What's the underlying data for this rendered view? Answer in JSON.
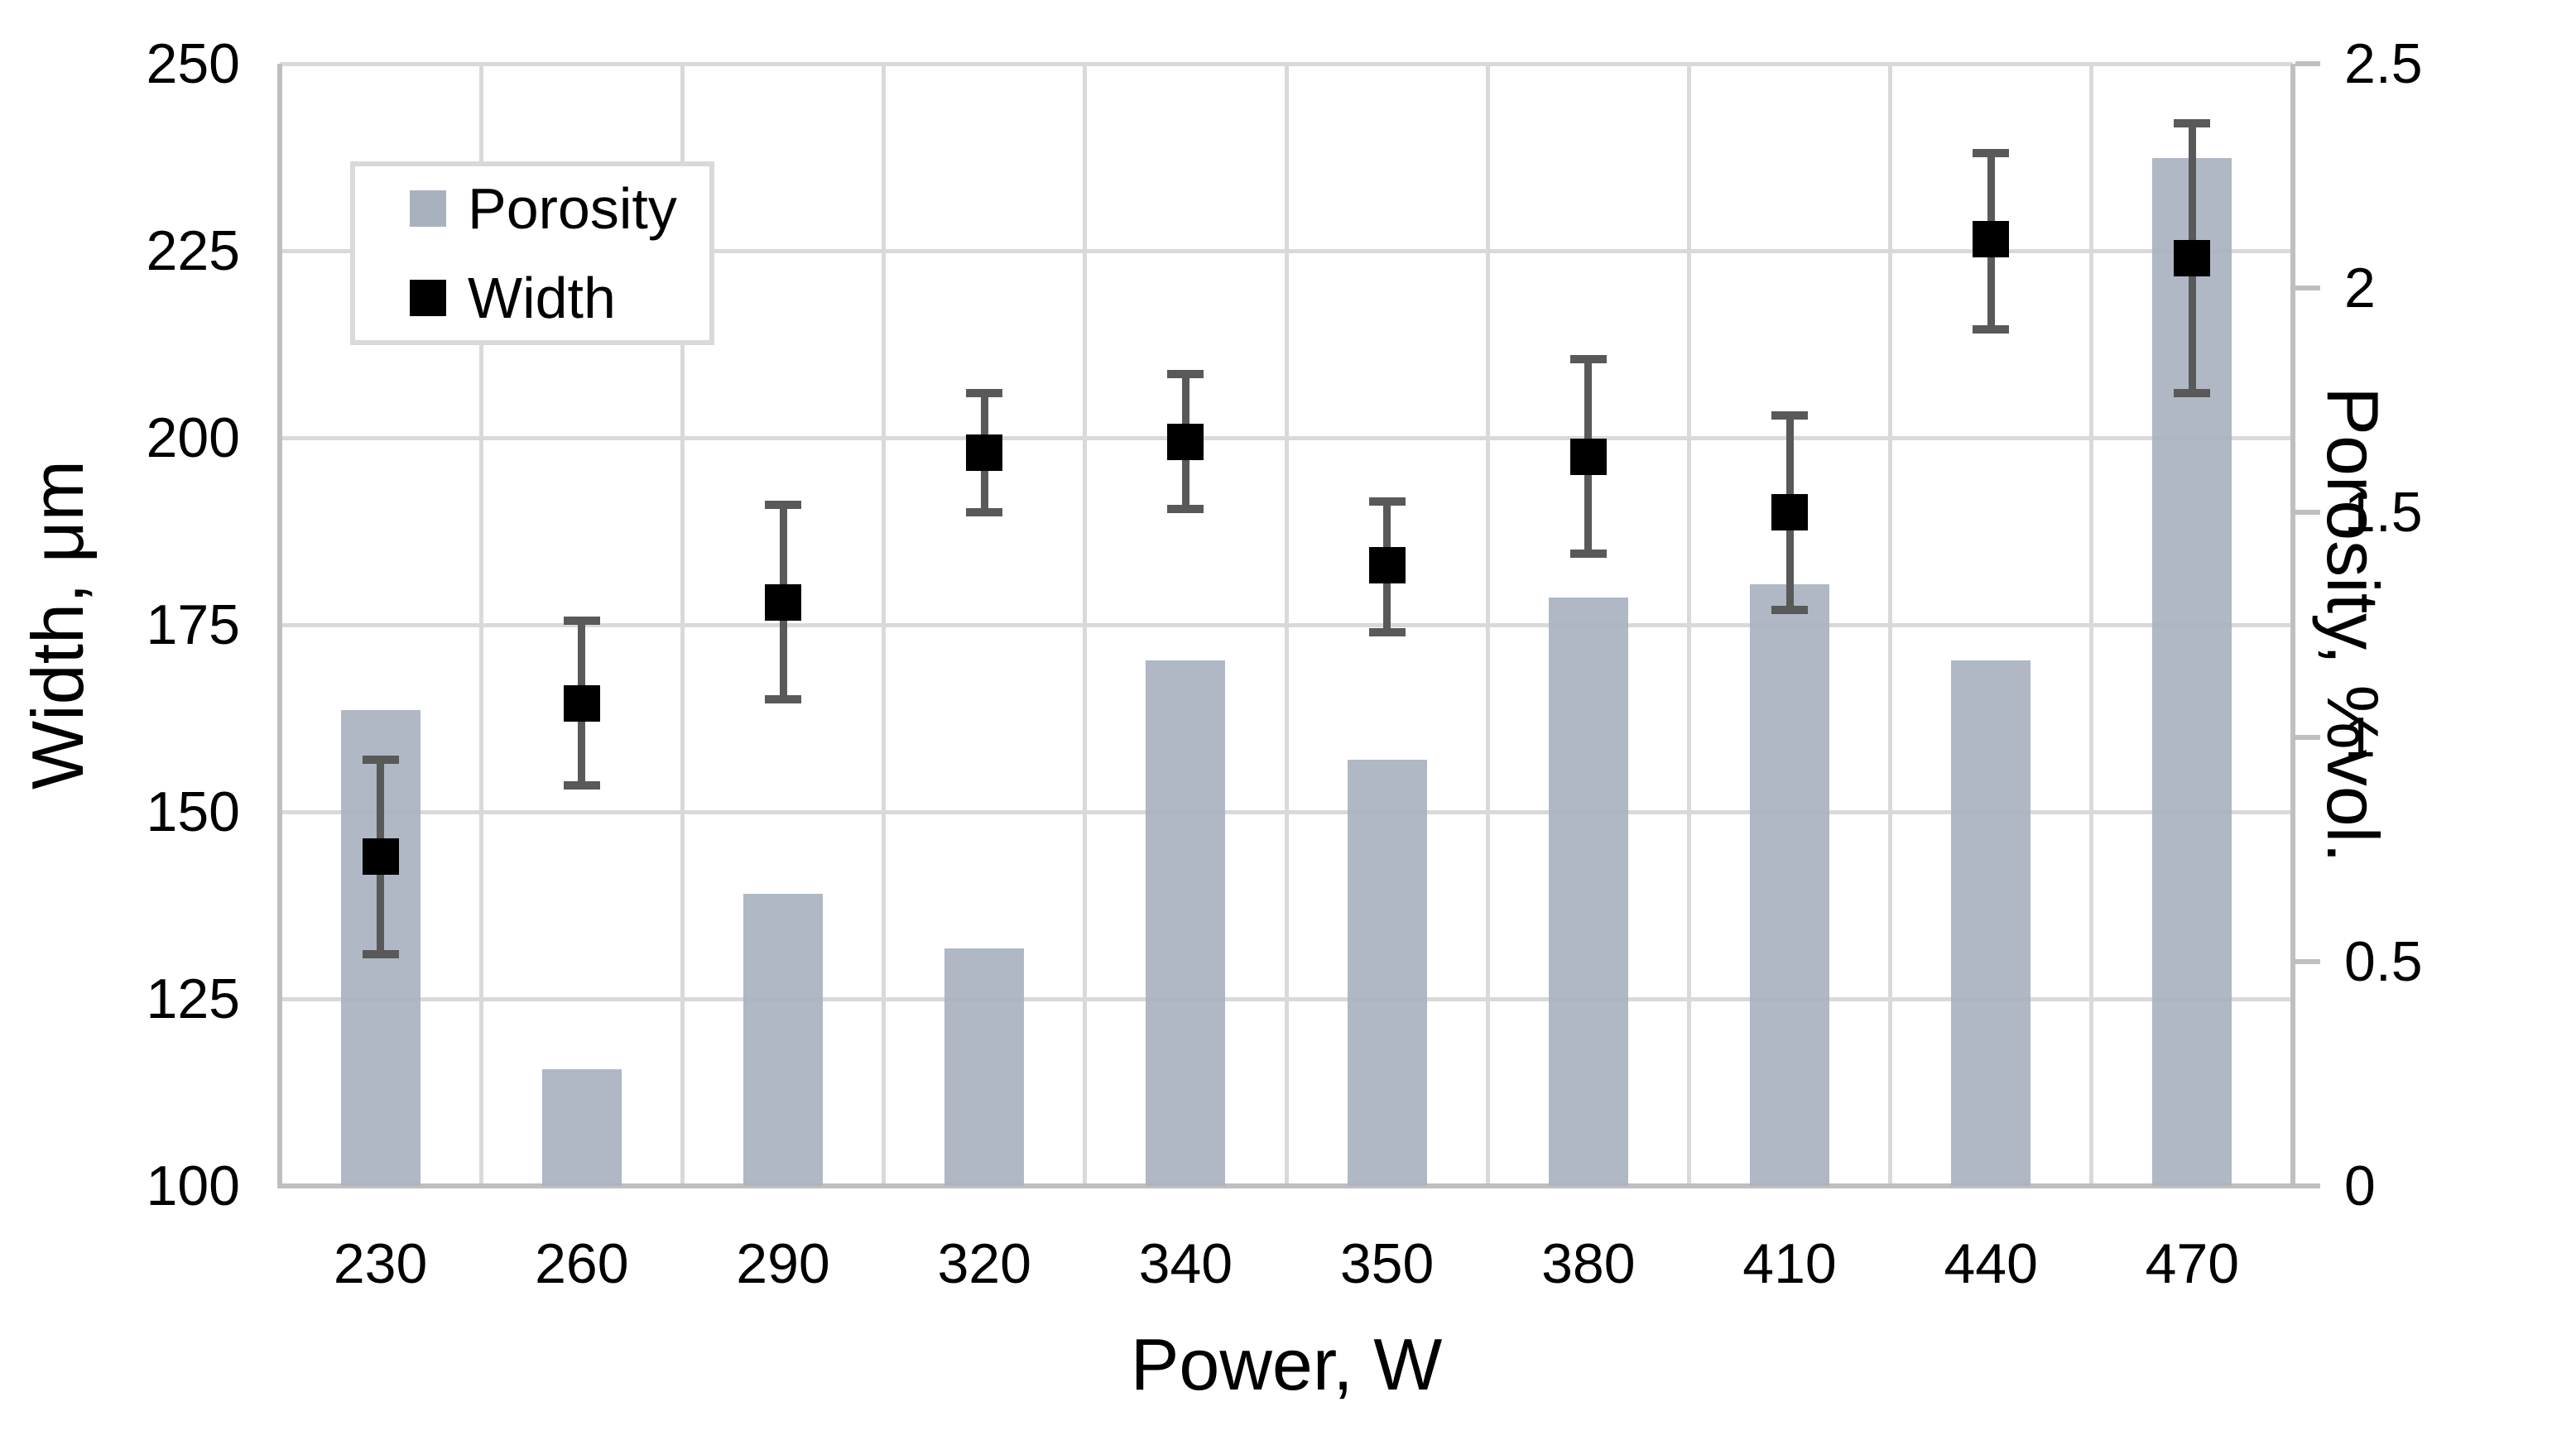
{
  "chart_data": {
    "type": "bar",
    "subtype": "combo-bar-scatter-errorbars",
    "categories": [
      "230",
      "260",
      "290",
      "320",
      "340",
      "350",
      "380",
      "410",
      "440",
      "470"
    ],
    "xlabel": "Power, W",
    "left_axis": {
      "label": "Width, μm",
      "min": 100,
      "max": 250,
      "tick_step": 25,
      "tick_labels": [
        "250",
        "225",
        "200",
        "175",
        "150",
        "125",
        "100"
      ]
    },
    "right_axis": {
      "label": "Porosity, %vol.",
      "min": 0,
      "max": 2.5,
      "tick_step": 0.5,
      "tick_labels": [
        "2.5",
        "2",
        "1.5",
        "1",
        "0.5",
        "0"
      ]
    },
    "series": [
      {
        "name": "Porosity",
        "type": "bar",
        "axis": "right",
        "color": "#a8b2bf",
        "values": [
          1.06,
          0.26,
          0.65,
          0.53,
          1.17,
          0.95,
          1.31,
          1.34,
          1.17,
          2.29
        ]
      },
      {
        "name": "Width",
        "type": "scatter",
        "axis": "left",
        "marker": "square",
        "color": "#000000",
        "error_color": "#595959",
        "values": [
          144,
          164.5,
          178,
          198,
          199.5,
          183,
          197.5,
          190,
          226.5,
          224
        ],
        "error_low": [
          131,
          153.5,
          165,
          190,
          190.5,
          174,
          184.5,
          177,
          214.5,
          206
        ],
        "error_high": [
          157,
          175.5,
          191,
          206,
          208.5,
          191.5,
          210.5,
          203,
          238,
          242
        ]
      }
    ],
    "legend": {
      "position": "top-left",
      "items": [
        {
          "label": "Porosity",
          "swatch_color": "#a8b2bf"
        },
        {
          "label": "Width",
          "swatch_color": "#000000"
        }
      ]
    },
    "grid": {
      "horizontal": true,
      "vertical": true,
      "color": "#d9d9d9"
    },
    "axis_line_color": "#bfbfbf"
  }
}
